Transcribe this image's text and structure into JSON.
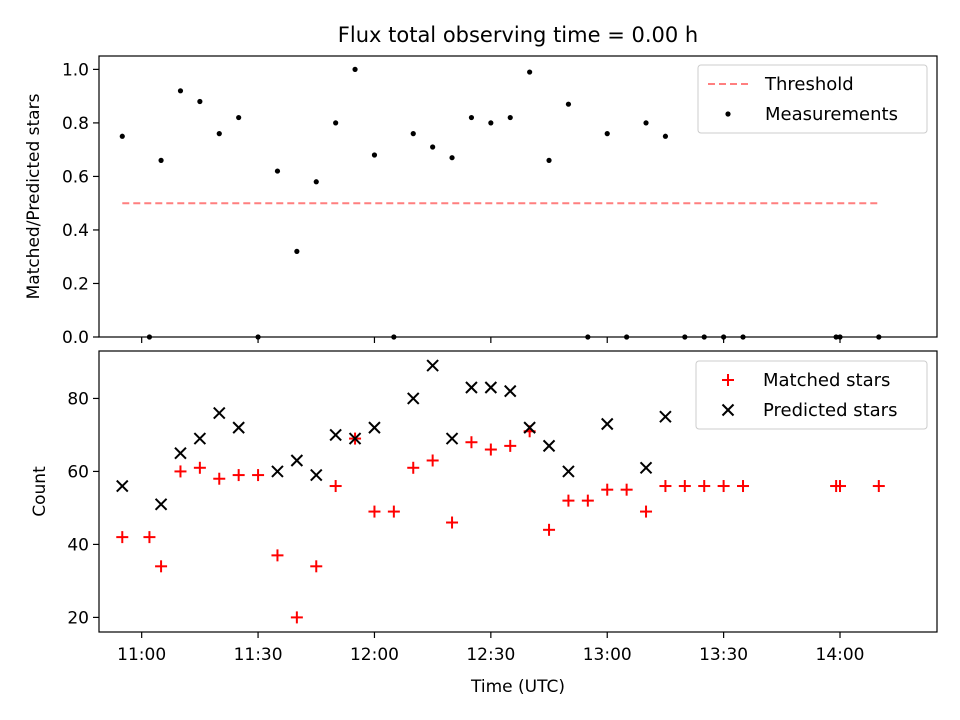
{
  "chart_data": {
    "title": "Flux total observing time = 0.00 h",
    "x_axis": {
      "label": "Time (UTC)",
      "unit": "minutes since 00:00 UTC",
      "range": [
        "10:49",
        "14:25"
      ],
      "ticks": [
        "11:00",
        "11:30",
        "12:00",
        "12:30",
        "13:00",
        "13:30",
        "14:00"
      ]
    },
    "top": {
      "type": "scatter",
      "ylabel": "Matched/Predicted stars",
      "ylim": [
        0,
        1.05
      ],
      "yticks": [
        "0.0",
        "0.2",
        "0.4",
        "0.6",
        "0.8",
        "1.0"
      ],
      "legend_position": "top-right",
      "threshold": {
        "name": "Threshold",
        "value": 0.5,
        "x_start": "10:55",
        "x_end": "14:10",
        "color": "#ff7f7f"
      },
      "measurements": {
        "name": "Measurements",
        "color": "#000000",
        "points": [
          {
            "x": "10:55",
            "y": 0.75
          },
          {
            "x": "11:02",
            "y": 0.0
          },
          {
            "x": "11:05",
            "y": 0.66
          },
          {
            "x": "11:10",
            "y": 0.92
          },
          {
            "x": "11:15",
            "y": 0.88
          },
          {
            "x": "11:20",
            "y": 0.76
          },
          {
            "x": "11:25",
            "y": 0.82
          },
          {
            "x": "11:30",
            "y": 0.0
          },
          {
            "x": "11:35",
            "y": 0.62
          },
          {
            "x": "11:40",
            "y": 0.32
          },
          {
            "x": "11:45",
            "y": 0.58
          },
          {
            "x": "11:50",
            "y": 0.8
          },
          {
            "x": "11:55",
            "y": 1.0
          },
          {
            "x": "12:00",
            "y": 0.68
          },
          {
            "x": "12:05",
            "y": 0.0
          },
          {
            "x": "12:10",
            "y": 0.76
          },
          {
            "x": "12:15",
            "y": 0.71
          },
          {
            "x": "12:20",
            "y": 0.67
          },
          {
            "x": "12:25",
            "y": 0.82
          },
          {
            "x": "12:30",
            "y": 0.8
          },
          {
            "x": "12:35",
            "y": 0.82
          },
          {
            "x": "12:40",
            "y": 0.99
          },
          {
            "x": "12:45",
            "y": 0.66
          },
          {
            "x": "12:50",
            "y": 0.87
          },
          {
            "x": "12:55",
            "y": 0.0
          },
          {
            "x": "13:00",
            "y": 0.76
          },
          {
            "x": "13:05",
            "y": 0.0
          },
          {
            "x": "13:10",
            "y": 0.8
          },
          {
            "x": "13:15",
            "y": 0.75
          },
          {
            "x": "13:20",
            "y": 0.0
          },
          {
            "x": "13:25",
            "y": 0.0
          },
          {
            "x": "13:30",
            "y": 0.0
          },
          {
            "x": "13:35",
            "y": 0.0
          },
          {
            "x": "13:59",
            "y": 0.0
          },
          {
            "x": "14:00",
            "y": 0.0
          },
          {
            "x": "14:10",
            "y": 0.0
          }
        ]
      }
    },
    "bottom": {
      "type": "scatter",
      "ylabel": "Count",
      "ylim": [
        16,
        93
      ],
      "yticks": [
        "20",
        "40",
        "60",
        "80"
      ],
      "legend_position": "top-right",
      "series": [
        {
          "name": "Matched stars",
          "marker": "+",
          "color": "#ff0000",
          "points": [
            {
              "x": "10:55",
              "y": 42
            },
            {
              "x": "11:02",
              "y": 42
            },
            {
              "x": "11:05",
              "y": 34
            },
            {
              "x": "11:10",
              "y": 60
            },
            {
              "x": "11:15",
              "y": 61
            },
            {
              "x": "11:20",
              "y": 58
            },
            {
              "x": "11:25",
              "y": 59
            },
            {
              "x": "11:30",
              "y": 59
            },
            {
              "x": "11:35",
              "y": 37
            },
            {
              "x": "11:40",
              "y": 20
            },
            {
              "x": "11:45",
              "y": 34
            },
            {
              "x": "11:50",
              "y": 56
            },
            {
              "x": "11:55",
              "y": 69
            },
            {
              "x": "12:00",
              "y": 49
            },
            {
              "x": "12:05",
              "y": 49
            },
            {
              "x": "12:10",
              "y": 61
            },
            {
              "x": "12:15",
              "y": 63
            },
            {
              "x": "12:20",
              "y": 46
            },
            {
              "x": "12:25",
              "y": 68
            },
            {
              "x": "12:30",
              "y": 66
            },
            {
              "x": "12:35",
              "y": 67
            },
            {
              "x": "12:40",
              "y": 71
            },
            {
              "x": "12:45",
              "y": 44
            },
            {
              "x": "12:50",
              "y": 52
            },
            {
              "x": "12:55",
              "y": 52
            },
            {
              "x": "13:00",
              "y": 55
            },
            {
              "x": "13:05",
              "y": 55
            },
            {
              "x": "13:10",
              "y": 49
            },
            {
              "x": "13:15",
              "y": 56
            },
            {
              "x": "13:20",
              "y": 56
            },
            {
              "x": "13:25",
              "y": 56
            },
            {
              "x": "13:30",
              "y": 56
            },
            {
              "x": "13:35",
              "y": 56
            },
            {
              "x": "13:59",
              "y": 56
            },
            {
              "x": "14:00",
              "y": 56
            },
            {
              "x": "14:10",
              "y": 56
            }
          ]
        },
        {
          "name": "Predicted stars",
          "marker": "x",
          "color": "#000000",
          "points": [
            {
              "x": "10:55",
              "y": 56
            },
            {
              "x": "11:05",
              "y": 51
            },
            {
              "x": "11:10",
              "y": 65
            },
            {
              "x": "11:15",
              "y": 69
            },
            {
              "x": "11:20",
              "y": 76
            },
            {
              "x": "11:25",
              "y": 72
            },
            {
              "x": "11:35",
              "y": 60
            },
            {
              "x": "11:40",
              "y": 63
            },
            {
              "x": "11:45",
              "y": 59
            },
            {
              "x": "11:50",
              "y": 70
            },
            {
              "x": "11:55",
              "y": 69
            },
            {
              "x": "12:00",
              "y": 72
            },
            {
              "x": "12:10",
              "y": 80
            },
            {
              "x": "12:15",
              "y": 89
            },
            {
              "x": "12:20",
              "y": 69
            },
            {
              "x": "12:25",
              "y": 83
            },
            {
              "x": "12:30",
              "y": 83
            },
            {
              "x": "12:35",
              "y": 82
            },
            {
              "x": "12:40",
              "y": 72
            },
            {
              "x": "12:45",
              "y": 67
            },
            {
              "x": "12:50",
              "y": 60
            },
            {
              "x": "13:00",
              "y": 73
            },
            {
              "x": "13:10",
              "y": 61
            },
            {
              "x": "13:15",
              "y": 75
            }
          ]
        }
      ]
    }
  }
}
